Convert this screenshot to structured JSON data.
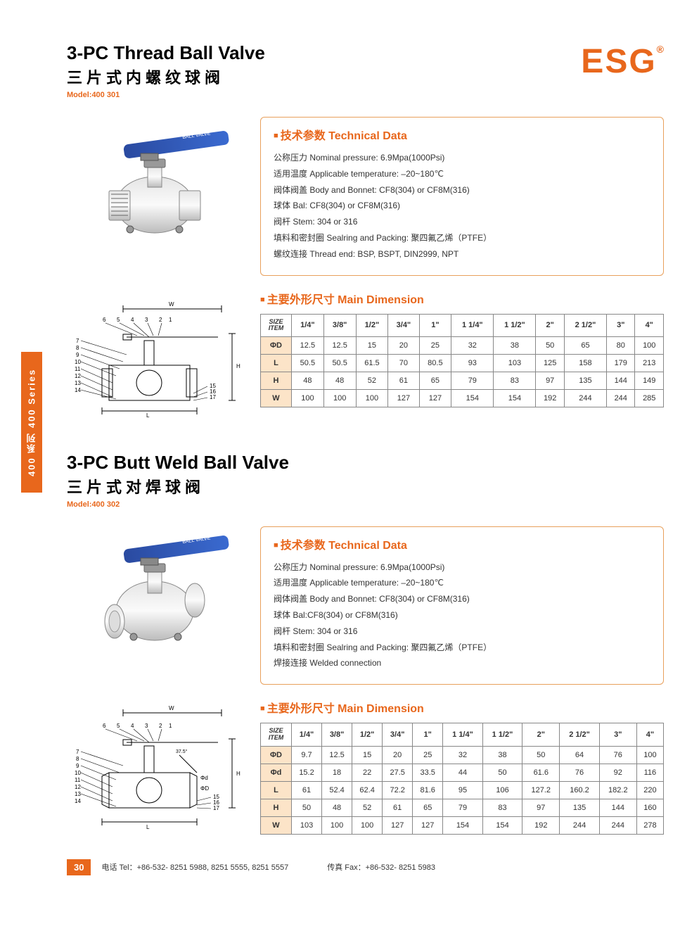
{
  "brand": {
    "name": "ESG",
    "reg": "®",
    "color": "#e8671c"
  },
  "side_tab": "400 系列 400 Series",
  "product1": {
    "title_en": "3-PC Thread Ball Valve",
    "title_cn": "三片式内螺纹球阀",
    "model": "Model:400 301",
    "tech_title": "技术参数 Technical Data",
    "tech_lines": [
      "公称压力 Nominal pressure: 6.9Mpa(1000Psi)",
      "适用温度 Applicable temperature: –20~180℃",
      "阀体阀盖 Body and Bonnet: CF8(304) or CF8M(316)",
      "球体 Bal: CF8(304) or CF8M(316)",
      "阀杆 Stem: 304 or 316",
      "填料和密封圈 Sealring and Packing: 聚四氟乙烯（PTFE）",
      "螺纹连接 Thread end: BSP, BSPT, DIN2999, NPT"
    ],
    "dim_title": "主要外形尺寸 Main Dimension",
    "table": {
      "header_label": "SIZE\nITEM",
      "sizes": [
        "1/4\"",
        "3/8\"",
        "1/2\"",
        "3/4\"",
        "1\"",
        "1 1/4\"",
        "1 1/2\"",
        "2\"",
        "2 1/2\"",
        "3\"",
        "4\""
      ],
      "rows": [
        {
          "label": "ΦD",
          "values": [
            "12.5",
            "12.5",
            "15",
            "20",
            "25",
            "32",
            "38",
            "50",
            "65",
            "80",
            "100"
          ]
        },
        {
          "label": "L",
          "values": [
            "50.5",
            "50.5",
            "61.5",
            "70",
            "80.5",
            "93",
            "103",
            "125",
            "158",
            "179",
            "213"
          ]
        },
        {
          "label": "H",
          "values": [
            "48",
            "48",
            "52",
            "61",
            "65",
            "79",
            "83",
            "97",
            "135",
            "144",
            "149"
          ]
        },
        {
          "label": "W",
          "values": [
            "100",
            "100",
            "100",
            "127",
            "127",
            "154",
            "154",
            "192",
            "244",
            "244",
            "285"
          ]
        }
      ]
    }
  },
  "product2": {
    "title_en": "3-PC Butt Weld Ball Valve",
    "title_cn": "三片式对焊球阀",
    "model": "Model:400 302",
    "tech_title": "技术参数 Technical Data",
    "tech_lines": [
      "公称压力 Nominal pressure: 6.9Mpa(1000Psi)",
      "适用温度 Applicable temperature: –20~180℃",
      "阀体阀盖 Body and Bonnet: CF8(304) or CF8M(316)",
      "球体 Bal:CF8(304) or CF8M(316)",
      "阀杆 Stem: 304 or 316",
      "填料和密封圈 Sealring and Packing: 聚四氟乙烯（PTFE）",
      "焊接连接 Welded connection"
    ],
    "dim_title": "主要外形尺寸 Main Dimension",
    "table": {
      "header_label": "SIZE\nITEM",
      "sizes": [
        "1/4\"",
        "3/8\"",
        "1/2\"",
        "3/4\"",
        "1\"",
        "1 1/4\"",
        "1 1/2\"",
        "2\"",
        "2 1/2\"",
        "3\"",
        "4\""
      ],
      "rows": [
        {
          "label": "ΦD",
          "values": [
            "9.7",
            "12.5",
            "15",
            "20",
            "25",
            "32",
            "38",
            "50",
            "64",
            "76",
            "100"
          ]
        },
        {
          "label": "Φd",
          "values": [
            "15.2",
            "18",
            "22",
            "27.5",
            "33.5",
            "44",
            "50",
            "61.6",
            "76",
            "92",
            "116"
          ]
        },
        {
          "label": "L",
          "values": [
            "61",
            "52.4",
            "62.4",
            "72.2",
            "81.6",
            "95",
            "106",
            "127.2",
            "160.2",
            "182.2",
            "220"
          ]
        },
        {
          "label": "H",
          "values": [
            "50",
            "48",
            "52",
            "61",
            "65",
            "79",
            "83",
            "97",
            "135",
            "144",
            "160"
          ]
        },
        {
          "label": "W",
          "values": [
            "103",
            "100",
            "100",
            "127",
            "127",
            "154",
            "154",
            "192",
            "244",
            "244",
            "278"
          ]
        }
      ]
    }
  },
  "footer": {
    "page": "30",
    "tel": "电话 Tel：+86-532- 8251 5988, 8251 5555, 8251 5557",
    "fax": "传真 Fax：+86-532- 8251 5983"
  },
  "colors": {
    "accent": "#e8671c",
    "table_row_bg": "#fce4c8",
    "tech_border": "#e8a05c"
  }
}
